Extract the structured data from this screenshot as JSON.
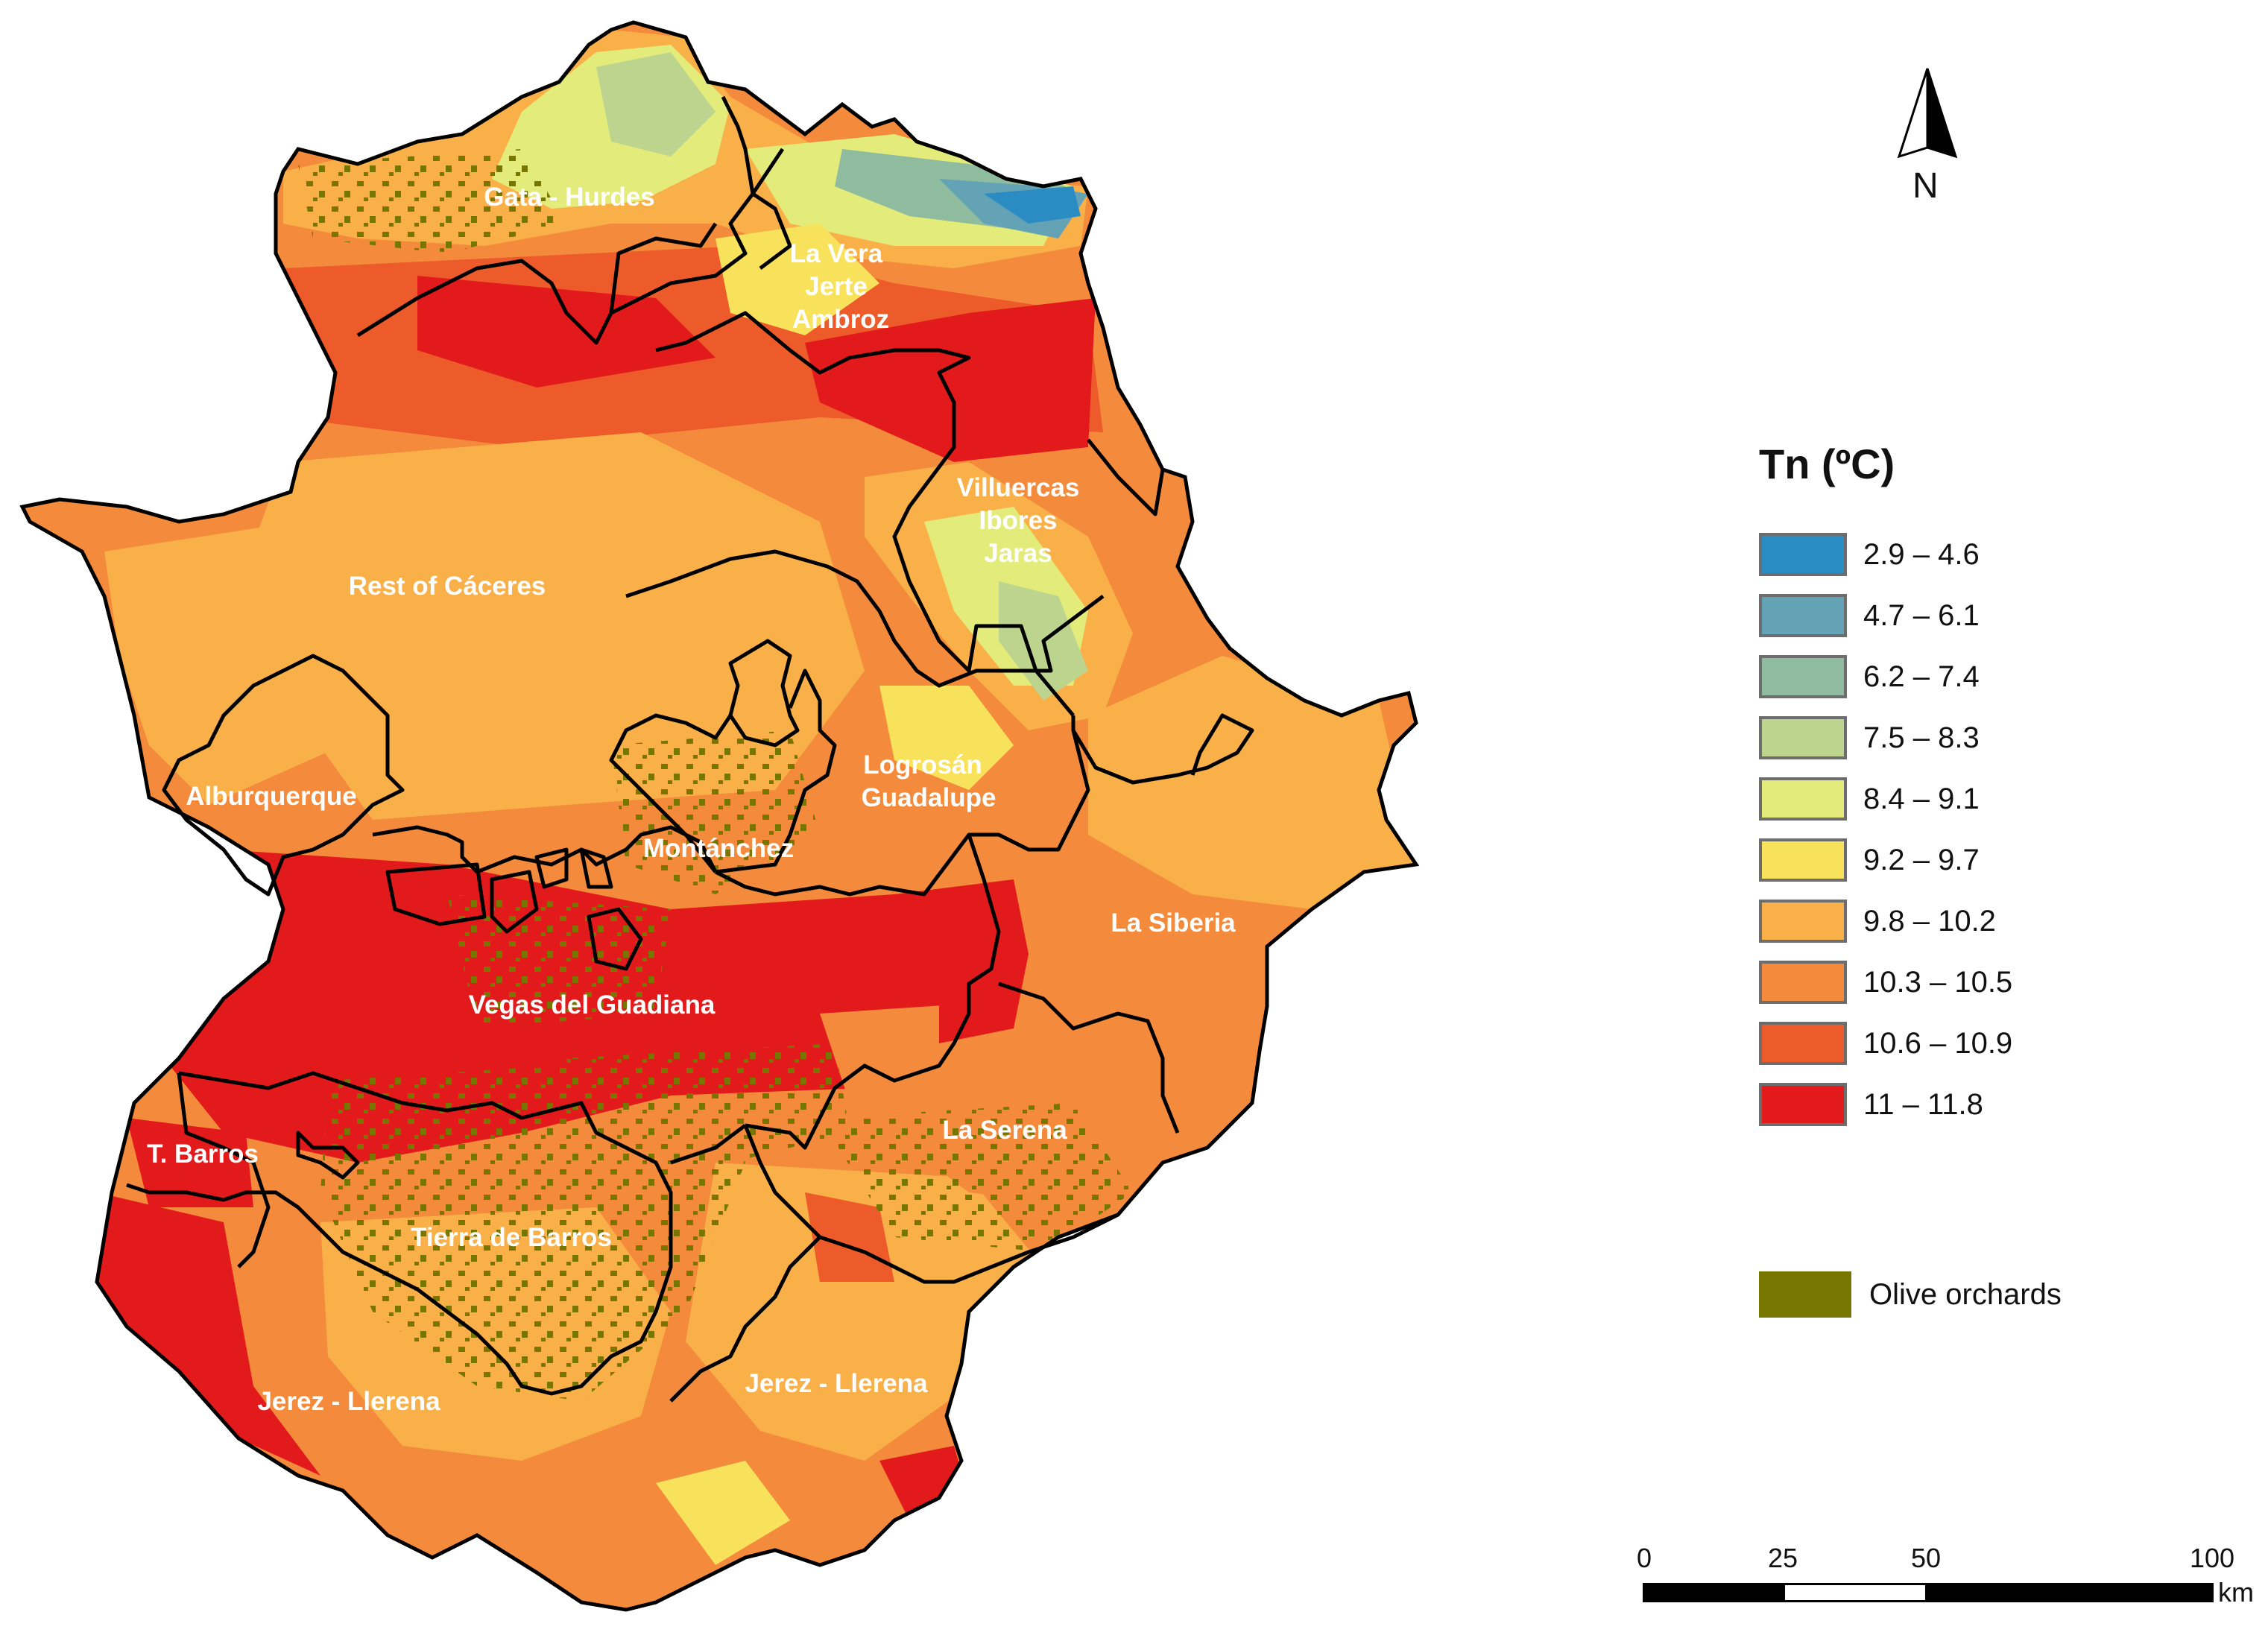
{
  "legend": {
    "title": "Tn (ºC)",
    "classes": [
      {
        "label": "2.9 – 4.6",
        "color": "#2b8cc4"
      },
      {
        "label": "4.7 – 6.1",
        "color": "#63a3b5"
      },
      {
        "label": "6.2 – 7.4",
        "color": "#8fbc9e"
      },
      {
        "label": "7.5 – 8.3",
        "color": "#bcd48e"
      },
      {
        "label": "8.4 – 9.1",
        "color": "#e3ec7a"
      },
      {
        "label": "9.2 – 9.7",
        "color": "#f8e25c"
      },
      {
        "label": "9.8 – 10.2",
        "color": "#f9b048"
      },
      {
        "label": "10.3 – 10.5",
        "color": "#f48b3c"
      },
      {
        "label": "10.6 – 10.9",
        "color": "#ee5b2a"
      },
      {
        "label": "11 – 11.8",
        "color": "#e31a1c"
      }
    ],
    "olive": {
      "label": "Olive orchards",
      "color": "#767600"
    }
  },
  "north_arrow": {
    "letter": "N"
  },
  "scale_bar": {
    "ticks": [
      "0",
      "25",
      "50",
      "100"
    ],
    "unit": "km"
  },
  "regions": [
    "Gata - Hurdes",
    "La Vera",
    "Jerte",
    "Ambroz",
    "Villuercas",
    "Ibores",
    "Jaras",
    "Rest of Cáceres",
    "Alburquerque",
    "Logrosán",
    "Guadalupe",
    "Montánchez",
    "La Siberia",
    "Vegas del Guadiana",
    "La Serena",
    "T. Barros",
    "Tierra de Barros",
    "Jerez - Llerena",
    "Jerez - Llerena"
  ]
}
